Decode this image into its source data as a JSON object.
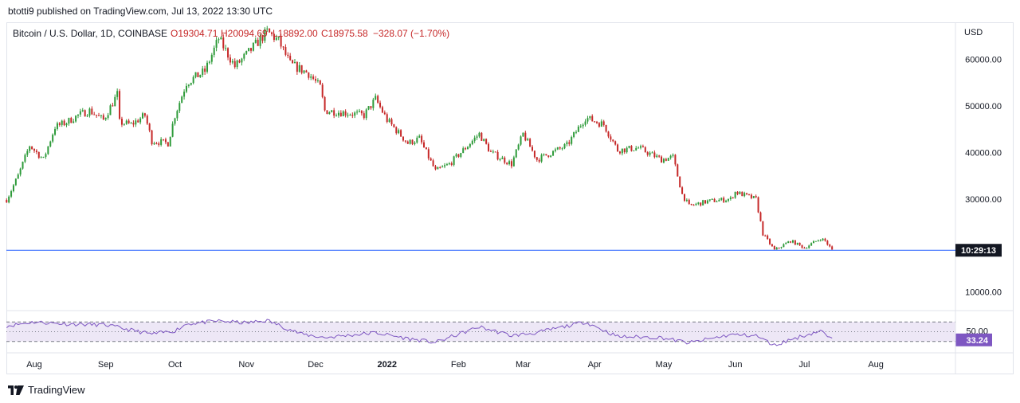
{
  "publisher": "btotti9 published on TradingView.com, Jul 13, 2022 13:30 UTC",
  "footer": {
    "brand": "TradingView",
    "icon": "tradingview-logo-icon"
  },
  "colors": {
    "up": "#26a69a",
    "up_fill": "#2e9b3a",
    "down": "#c62828",
    "price_line": "#2962ff",
    "rsi": "#7e57c2",
    "rsi_band": "#ede7f6",
    "label_bg": "#131722",
    "rsi_label_bg": "#7e57c2"
  },
  "chart_data": {
    "type": "candlestick",
    "symbol_legend": {
      "name": "Bitcoin / U.S. Dollar, 1D, COINBASE",
      "open": "O19304.71",
      "high": "H20094.69",
      "low": "L18892.00",
      "close": "C18975.58",
      "change": "−328.07 (−1.70%)"
    },
    "currency": "USD",
    "price_axis_ticks": [
      "60000.00",
      "50000.00",
      "40000.00",
      "30000.00",
      "10000.00"
    ],
    "ylim": [
      6000,
      68000
    ],
    "countdown_label": "10:29:13",
    "last_close": 18975.58,
    "x_ticks": [
      "Aug",
      "Sep",
      "Oct",
      "Nov",
      "Dec",
      "2022",
      "Feb",
      "Mar",
      "Apr",
      "May",
      "Jun",
      "Jul",
      "Aug"
    ],
    "x_tick_dates": [
      "2021-08-01",
      "2021-09-01",
      "2021-10-01",
      "2021-11-01",
      "2021-12-01",
      "2022-01-01",
      "2022-02-01",
      "2022-03-01",
      "2022-04-01",
      "2022-05-01",
      "2022-06-01",
      "2022-07-01",
      "2022-08-01"
    ],
    "price_path": [
      [
        "2021-07-20",
        29800
      ],
      [
        "2021-07-25",
        35000
      ],
      [
        "2021-07-30",
        41500
      ],
      [
        "2021-08-05",
        38500
      ],
      [
        "2021-08-10",
        45500
      ],
      [
        "2021-08-15",
        46500
      ],
      [
        "2021-08-20",
        48000
      ],
      [
        "2021-08-25",
        49000
      ],
      [
        "2021-08-31",
        47000
      ],
      [
        "2021-09-06",
        52500
      ],
      [
        "2021-09-07",
        46500
      ],
      [
        "2021-09-12",
        46000
      ],
      [
        "2021-09-18",
        48000
      ],
      [
        "2021-09-21",
        42500
      ],
      [
        "2021-09-28",
        42000
      ],
      [
        "2021-10-01",
        48000
      ],
      [
        "2021-10-06",
        55000
      ],
      [
        "2021-10-14",
        57500
      ],
      [
        "2021-10-20",
        64500
      ],
      [
        "2021-10-27",
        58500
      ],
      [
        "2021-11-01",
        61000
      ],
      [
        "2021-11-10",
        66000
      ],
      [
        "2021-11-15",
        64000
      ],
      [
        "2021-11-20",
        59000
      ],
      [
        "2021-11-28",
        57000
      ],
      [
        "2021-12-03",
        54000
      ],
      [
        "2021-12-05",
        49000
      ],
      [
        "2021-12-15",
        48500
      ],
      [
        "2021-12-22",
        48000
      ],
      [
        "2021-12-27",
        51500
      ],
      [
        "2022-01-01",
        47000
      ],
      [
        "2022-01-10",
        42000
      ],
      [
        "2022-01-15",
        43000
      ],
      [
        "2022-01-22",
        36000
      ],
      [
        "2022-01-28",
        37500
      ],
      [
        "2022-02-05",
        41500
      ],
      [
        "2022-02-10",
        44000
      ],
      [
        "2022-02-15",
        40000
      ],
      [
        "2022-02-24",
        37500
      ],
      [
        "2022-03-01",
        44000
      ],
      [
        "2022-03-07",
        38500
      ],
      [
        "2022-03-20",
        41500
      ],
      [
        "2022-03-28",
        47500
      ],
      [
        "2022-04-05",
        46000
      ],
      [
        "2022-04-11",
        40500
      ],
      [
        "2022-04-20",
        41000
      ],
      [
        "2022-04-30",
        38500
      ],
      [
        "2022-05-05",
        39000
      ],
      [
        "2022-05-09",
        31000
      ],
      [
        "2022-05-12",
        28500
      ],
      [
        "2022-05-20",
        29500
      ],
      [
        "2022-05-30",
        30000
      ],
      [
        "2022-06-01",
        31500
      ],
      [
        "2022-06-10",
        30000
      ],
      [
        "2022-06-13",
        22500
      ],
      [
        "2022-06-18",
        19000
      ],
      [
        "2022-06-25",
        21000
      ],
      [
        "2022-07-01",
        19500
      ],
      [
        "2022-07-08",
        21500
      ],
      [
        "2022-07-10",
        21000
      ],
      [
        "2022-07-13",
        18975.58
      ]
    ],
    "rsi": {
      "levels": [
        70,
        50,
        30
      ],
      "last_value": "33.24",
      "axis_label": "50.00",
      "ylim": [
        10,
        90
      ],
      "path": [
        [
          "2021-07-20",
          62
        ],
        [
          "2021-08-01",
          70
        ],
        [
          "2021-08-15",
          66
        ],
        [
          "2021-09-01",
          64
        ],
        [
          "2021-09-07",
          58
        ],
        [
          "2021-09-21",
          45
        ],
        [
          "2021-10-01",
          52
        ],
        [
          "2021-10-06",
          66
        ],
        [
          "2021-10-20",
          72
        ],
        [
          "2021-11-01",
          68
        ],
        [
          "2021-11-10",
          73
        ],
        [
          "2021-11-25",
          45
        ],
        [
          "2021-12-05",
          38
        ],
        [
          "2021-12-27",
          48
        ],
        [
          "2022-01-10",
          36
        ],
        [
          "2022-01-22",
          28
        ],
        [
          "2022-02-10",
          60
        ],
        [
          "2022-02-24",
          42
        ],
        [
          "2022-03-07",
          48
        ],
        [
          "2022-03-28",
          70
        ],
        [
          "2022-04-11",
          40
        ],
        [
          "2022-04-30",
          38
        ],
        [
          "2022-05-12",
          27
        ],
        [
          "2022-05-30",
          44
        ],
        [
          "2022-06-10",
          42
        ],
        [
          "2022-06-18",
          22
        ],
        [
          "2022-06-25",
          34
        ],
        [
          "2022-07-08",
          52
        ],
        [
          "2022-07-13",
          33.24
        ]
      ]
    }
  }
}
